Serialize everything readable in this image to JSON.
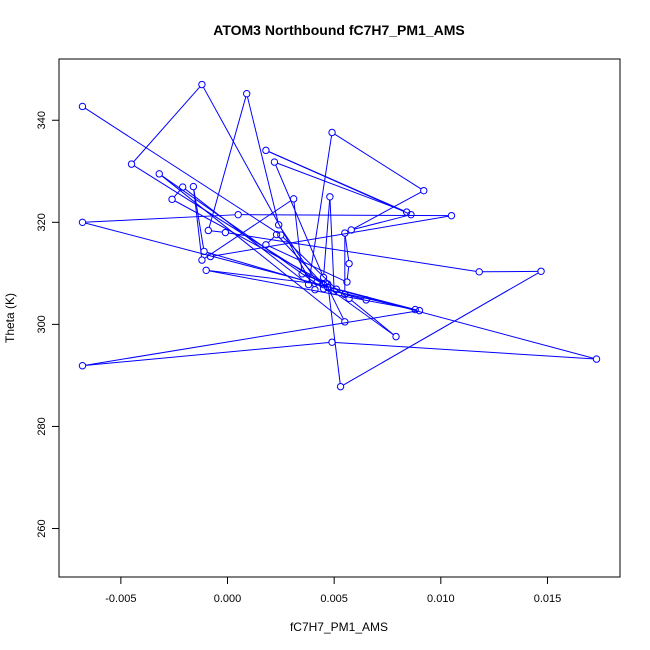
{
  "chart_data": {
    "type": "scatter",
    "title": "ATOM3 Northbound fC7H7_PM1_AMS",
    "xlabel": "fC7H7_PM1_AMS",
    "ylabel": "Theta (K)",
    "xlim": [
      -0.0079,
      0.0184
    ],
    "ylim": [
      250.5,
      352
    ],
    "xticks": [
      -0.005,
      0.0,
      0.005,
      0.01,
      0.015
    ],
    "xtick_labels": [
      "-0.005",
      "0.000",
      "0.005",
      "0.010",
      "0.015"
    ],
    "yticks": [
      260,
      280,
      300,
      320,
      340
    ],
    "ytick_labels": [
      "260",
      "280",
      "300",
      "320",
      "340"
    ],
    "grid": false,
    "connected": true,
    "marker": "open-circle",
    "color": "#0000ff",
    "points": [
      {
        "x": -0.0068,
        "y": 342.7
      },
      {
        "x": 0.0025,
        "y": 317.5
      },
      {
        "x": 0.0051,
        "y": 306.9
      },
      {
        "x": 0.0057,
        "y": 305.1
      },
      {
        "x": 0.0079,
        "y": 297.6
      },
      {
        "x": 0.0047,
        "y": 307.2
      },
      {
        "x": -0.0011,
        "y": 314.3
      },
      {
        "x": -0.0016,
        "y": 327.0
      },
      {
        "x": -0.0012,
        "y": 312.6
      },
      {
        "x": 0.0031,
        "y": 324.6
      },
      {
        "x": 0.0035,
        "y": 309.9
      },
      {
        "x": 0.0046,
        "y": 308.1
      },
      {
        "x": 0.0055,
        "y": 300.5
      },
      {
        "x": -0.0032,
        "y": 329.5
      },
      {
        "x": 0.0045,
        "y": 307.0
      },
      {
        "x": 0.009,
        "y": 302.7
      },
      {
        "x": -0.0068,
        "y": 291.9
      },
      {
        "x": 0.0049,
        "y": 296.5
      },
      {
        "x": 0.0173,
        "y": 293.2
      },
      {
        "x": 0.0047,
        "y": 307.3
      },
      {
        "x": -0.0045,
        "y": 331.4
      },
      {
        "x": -0.0012,
        "y": 347.0
      },
      {
        "x": 0.0041,
        "y": 306.8
      },
      {
        "x": 0.0042,
        "y": 308.3
      },
      {
        "x": 0.0024,
        "y": 319.5
      },
      {
        "x": 0.0009,
        "y": 345.2
      },
      {
        "x": -0.0009,
        "y": 318.4
      },
      {
        "x": -0.0001,
        "y": 318.0
      },
      {
        "x": 0.0118,
        "y": 310.3
      },
      {
        "x": 0.0147,
        "y": 310.4
      },
      {
        "x": 0.0053,
        "y": 287.8
      },
      {
        "x": 0.0047,
        "y": 307.9
      },
      {
        "x": -0.0026,
        "y": 324.5
      },
      {
        "x": -0.0021,
        "y": 326.9
      },
      {
        "x": 0.0038,
        "y": 307.8
      },
      {
        "x": 0.0049,
        "y": 337.6
      },
      {
        "x": 0.0092,
        "y": 326.2
      },
      {
        "x": 0.0058,
        "y": 318.5
      },
      {
        "x": 0.0086,
        "y": 321.5
      },
      {
        "x": 0.0018,
        "y": 334.1
      },
      {
        "x": 0.0084,
        "y": 322.0
      },
      {
        "x": 0.0022,
        "y": 331.8
      },
      {
        "x": 0.0045,
        "y": 309.2
      },
      {
        "x": 0.0048,
        "y": 325.0
      },
      {
        "x": 0.005,
        "y": 306.5
      },
      {
        "x": 0.0065,
        "y": 304.8
      },
      {
        "x": 0.0055,
        "y": 305.9
      },
      {
        "x": 0.0055,
        "y": 317.9
      },
      {
        "x": 0.0057,
        "y": 311.9
      },
      {
        "x": 0.0056,
        "y": 308.3
      },
      {
        "x": 0.0018,
        "y": 315.6
      },
      {
        "x": 0.0023,
        "y": 317.6
      },
      {
        "x": 0.0045,
        "y": 307.8
      },
      {
        "x": -0.001,
        "y": 310.6
      },
      {
        "x": 0.0088,
        "y": 302.9
      },
      {
        "x": -0.0068,
        "y": 320.0
      },
      {
        "x": 0.0005,
        "y": 321.5
      },
      {
        "x": 0.0105,
        "y": 321.3
      },
      {
        "x": -0.0008,
        "y": 313.3
      }
    ]
  }
}
